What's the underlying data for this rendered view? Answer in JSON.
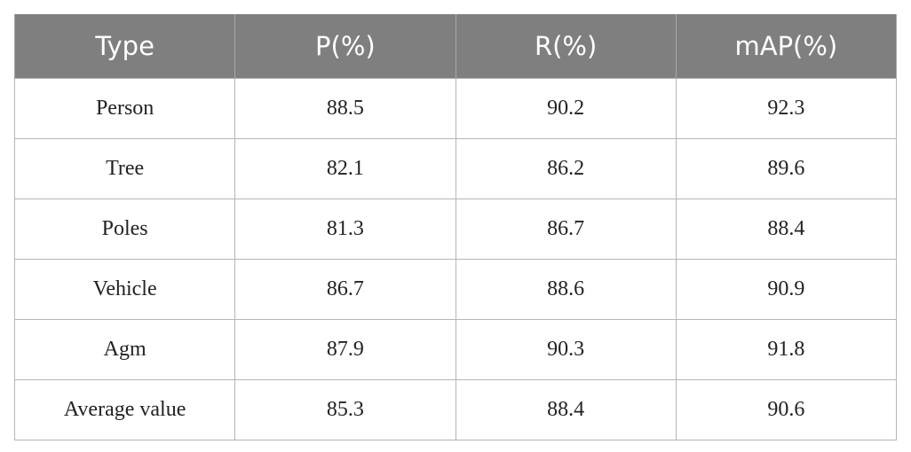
{
  "table": {
    "header": [
      "Type",
      "P(%)",
      "R(%)",
      "mAP(%)"
    ],
    "rows": [
      [
        "Person",
        "88.5",
        "90.2",
        "92.3"
      ],
      [
        "Tree",
        "82.1",
        "86.2",
        "89.6"
      ],
      [
        "Poles",
        "81.3",
        "86.7",
        "88.4"
      ],
      [
        "Vehicle",
        "86.7",
        "88.6",
        "90.9"
      ],
      [
        "Agm",
        "87.9",
        "90.3",
        "91.8"
      ],
      [
        "Average value",
        "85.3",
        "88.4",
        "90.6"
      ]
    ]
  }
}
